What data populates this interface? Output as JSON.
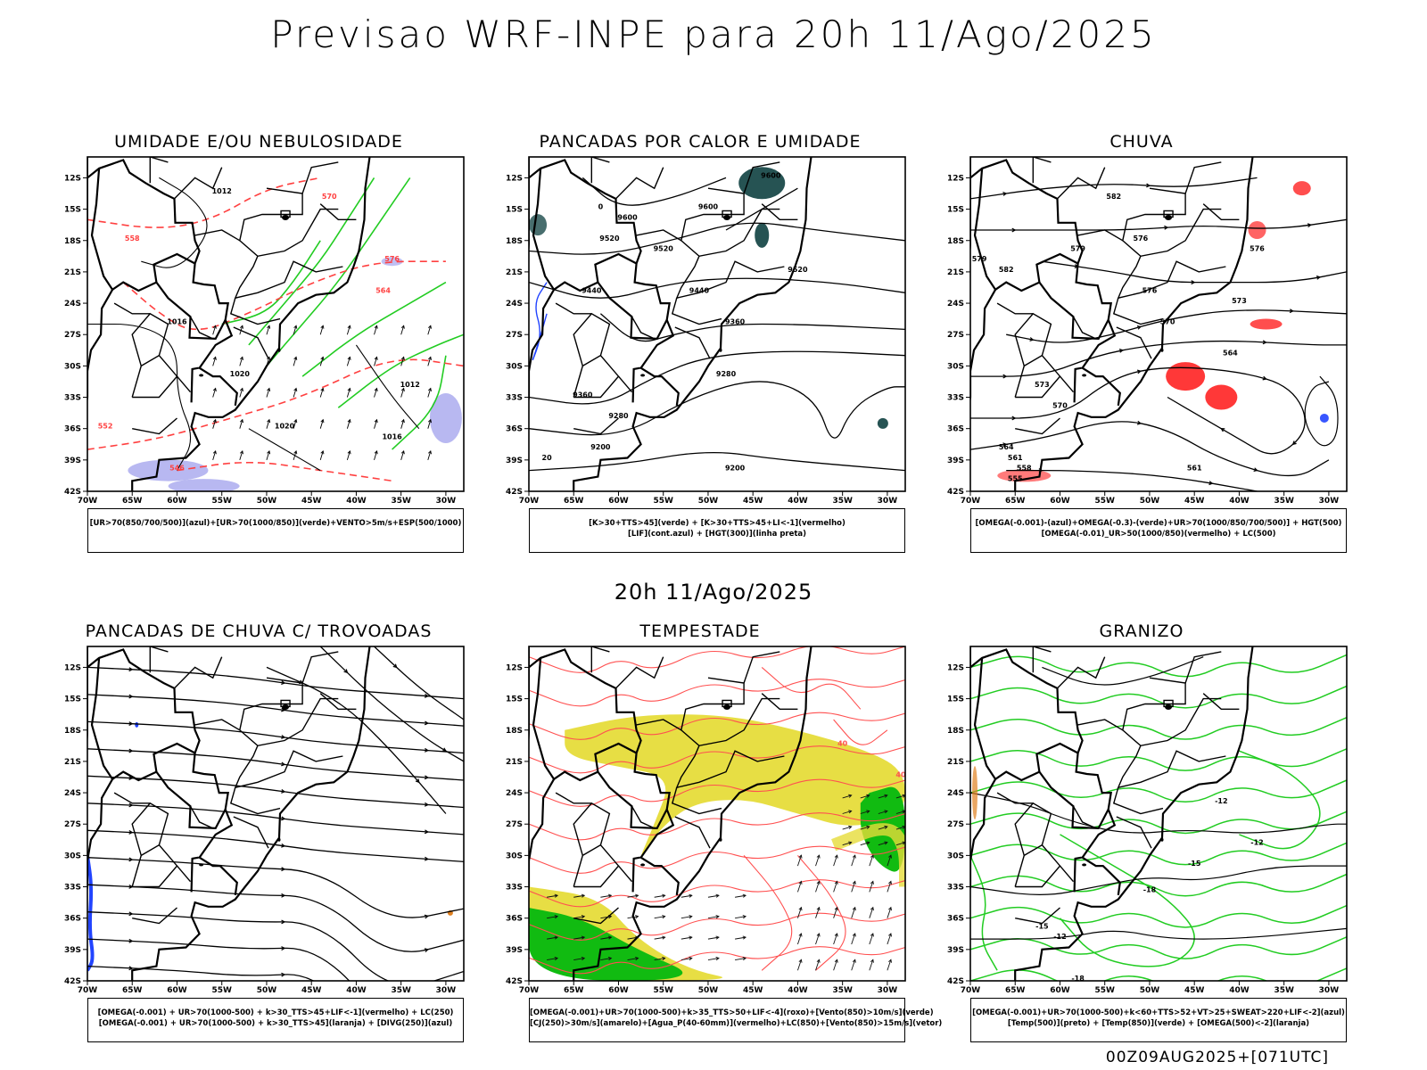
{
  "main_title": "Previsao WRF-INPE  para 20h 11/Ago/2025",
  "mid_title": "20h 11/Ago/2025",
  "footer_stamp": "00Z09AUG2025+[071UTC]",
  "axes": {
    "lat_ticks": [
      "12S",
      "15S",
      "18S",
      "21S",
      "24S",
      "27S",
      "30S",
      "33S",
      "36S",
      "39S",
      "42S"
    ],
    "lon_ticks": [
      "70W",
      "65W",
      "60W",
      "55W",
      "50W",
      "45W",
      "40W",
      "35W",
      "30W"
    ]
  },
  "colors": {
    "humidity_mid_blue": "#b0b0f0",
    "humidity_low_green": "#22cc22",
    "contour_red": "#ff4040",
    "lif_blue": "#2244ff",
    "cape_teal": "#1a4a4a",
    "omega_red": "#ff2222",
    "cj_yellow": "#e6dc3a",
    "vento_green": "#11bb11",
    "agua_red": "#ff5050",
    "orange": "#e08020"
  },
  "panels": [
    {
      "title": "UMIDADE E/OU NEBULOSIDADE",
      "legend": [
        "[UR>70(850/700/500)](azul)+[UR>70(1000/850)](verde)+VENTO>5m/s+ESP(500/1000)"
      ],
      "labels": [
        "1012",
        "1016",
        "1020",
        "570",
        "576",
        "564",
        "558",
        "552",
        "546",
        "1012",
        "1016",
        "1020"
      ]
    },
    {
      "title": "PANCADAS POR CALOR E UMIDADE",
      "legend": [
        "[K>30+TTS>45](verde) + [K>30+TTS>45+LI<-1](vermelho)",
        "[LIF](cont.azul) + [HGT(300)](linha preta)"
      ],
      "labels": [
        "9600",
        "9600",
        "9520",
        "9520",
        "9440",
        "9440",
        "9360",
        "9360",
        "9280",
        "9280",
        "9200",
        "9200",
        "9520",
        "9600",
        "20",
        "0"
      ]
    },
    {
      "title": "CHUVA",
      "legend": [
        "[OMEGA(-0.001)-(azul)+OMEGA(-0.3)-(verde)+UR>70(1000/850/700/500)] + HGT(500)",
        "[OMEGA(-0.01)_UR>50(1000/850)(vermelho) + LC(500)"
      ],
      "labels": [
        "582",
        "576",
        "579",
        "576",
        "573",
        "570",
        "570",
        "564",
        "561",
        "558",
        "555",
        "579",
        "582",
        "576",
        "573",
        "564",
        "561"
      ]
    },
    {
      "title": "PANCADAS DE CHUVA C/ TROVOADAS",
      "legend": [
        "[OMEGA(-0.001) + UR>70(1000-500) + k>30_TTS>45+LIF<-1](vermelho) + LC(250)",
        "[OMEGA(-0.001) + UR>70(1000-500) + k>30_TTS>45](laranja) + [DIVG(250)](azul)"
      ],
      "labels": []
    },
    {
      "title": "TEMPESTADE",
      "legend": [
        "[OMEGA(-0.001)+UR>70(1000-500)+k>35_TTS>50+LIF<-4](roxo)+[Vento(850)>10m/s](verde)",
        "[CJ(250)>30m/s](amarelo)+[Agua_P(40-60mm)](vermelho)+LC(850)+[Vento(850)>15m/s](vetor)"
      ],
      "labels": [
        "40",
        "40"
      ]
    },
    {
      "title": "GRANIZO",
      "legend": [
        "[OMEGA(-0.001)+UR>70(1000-500)+k<60+TTS>52+VT>25+SWEAT>220+LIF<-2](azul)",
        "[Temp(500)](preto) + [Temp(850)](verde) + [OMEGA(500)<-2](laranja)"
      ],
      "labels": [
        "-12",
        "-15",
        "-18",
        "-12",
        "-15",
        "-18",
        "-12"
      ]
    }
  ]
}
